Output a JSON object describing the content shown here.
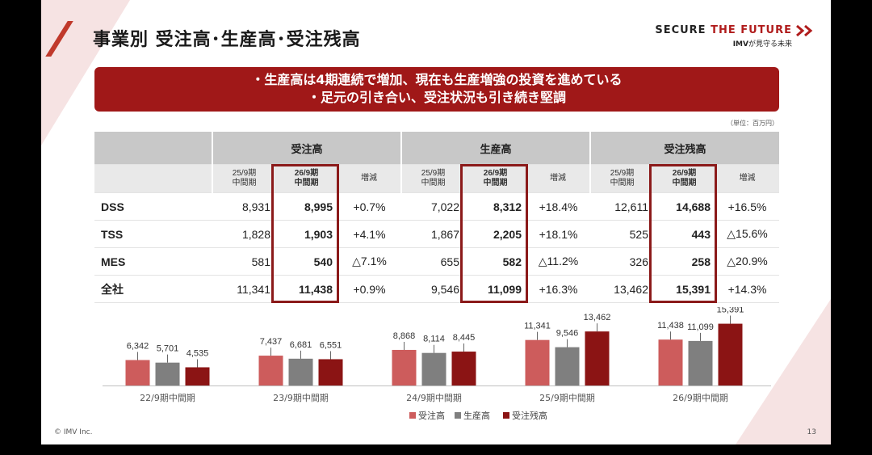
{
  "title": "事業別 受注高･生産高･受注残高",
  "brand": {
    "part1": "SECURE ",
    "part2": "THE FUTURE",
    "sub_prefix": "IMV",
    "sub_mid": "が",
    "sub_rest": "見守る未来"
  },
  "banner": {
    "line1": "・生産高は4期連続で増加、現在も生産増強の投資を進めている",
    "line2": "・足元の引き合い、受注状況も引き続き堅調"
  },
  "unit_note": "（単位：百万円）",
  "table": {
    "groups": [
      "受注高",
      "生産高",
      "受注残高"
    ],
    "subheads": {
      "prev": "25/9期\n中間期",
      "curr": "26/9期\n中間期",
      "chg": "増減"
    },
    "rows": [
      {
        "name": "DSS",
        "cells": [
          "8,931",
          "8,995",
          "+0.7%",
          "7,022",
          "8,312",
          "+18.4%",
          "12,611",
          "14,688",
          "+16.5%"
        ]
      },
      {
        "name": "TSS",
        "cells": [
          "1,828",
          "1,903",
          "+4.1%",
          "1,867",
          "2,205",
          "+18.1%",
          "525",
          "443",
          "△15.6%"
        ]
      },
      {
        "name": "MES",
        "cells": [
          "581",
          "540",
          "△7.1%",
          "655",
          "582",
          "△11.2%",
          "326",
          "258",
          "△20.9%"
        ]
      },
      {
        "name": "全社",
        "cells": [
          "11,341",
          "11,438",
          "+0.9%",
          "9,546",
          "11,099",
          "+16.3%",
          "13,462",
          "15,391",
          "+14.3%"
        ]
      }
    ]
  },
  "chart_data": {
    "type": "bar",
    "categories": [
      "22/9期中間期",
      "23/9期中間期",
      "24/9期中間期",
      "25/9期中間期",
      "26/9期中間期"
    ],
    "series": [
      {
        "name": "受注高",
        "color": "#cd5c5c",
        "values": [
          6342,
          7437,
          8868,
          11341,
          11438
        ]
      },
      {
        "name": "生産高",
        "color": "#7f7f7f",
        "values": [
          5701,
          6681,
          8114,
          9546,
          11099
        ]
      },
      {
        "name": "受注残高",
        "color": "#8b1414",
        "values": [
          4535,
          6551,
          8445,
          13462,
          15391
        ]
      }
    ],
    "ylim": [
      0,
      16000
    ]
  },
  "footer": {
    "copyright": "© IMV Inc.",
    "page": "13"
  }
}
